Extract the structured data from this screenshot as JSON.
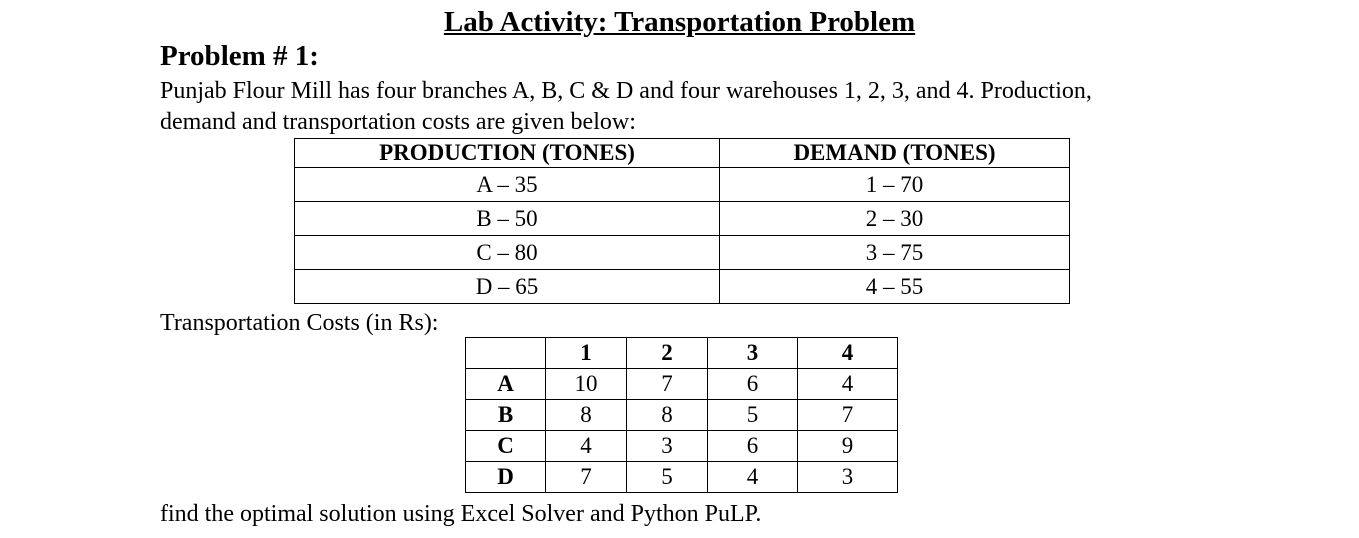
{
  "title": "Lab Activity: Transportation Problem",
  "heading": "Problem # 1:",
  "paragraph": {
    "line1": "Punjab Flour Mill has four branches A, B, C & D and four warehouses 1, 2, 3, and 4. Production,",
    "line2": "demand and transportation costs are given below:"
  },
  "production_demand_table": {
    "headers": [
      "PRODUCTION (TONES)",
      "DEMAND (TONES)"
    ],
    "rows": [
      [
        "A – 35",
        "1 – 70"
      ],
      [
        "B – 50",
        "2 – 30"
      ],
      [
        "C – 80",
        "3 – 75"
      ],
      [
        "D – 65",
        "4 – 55"
      ]
    ]
  },
  "costs_label": "Transportation Costs (in Rs):",
  "cost_table": {
    "headers": [
      "",
      "1",
      "2",
      "3",
      "4"
    ],
    "rows": [
      {
        "label": "A",
        "values": [
          "10",
          "7",
          "6",
          "4"
        ]
      },
      {
        "label": "B",
        "values": [
          "8",
          "8",
          "5",
          "7"
        ]
      },
      {
        "label": "C",
        "values": [
          "4",
          "3",
          "6",
          "9"
        ]
      },
      {
        "label": "D",
        "values": [
          "7",
          "5",
          "4",
          "3"
        ]
      }
    ]
  },
  "footer": "find the optimal solution using Excel Solver and Python PuLP."
}
